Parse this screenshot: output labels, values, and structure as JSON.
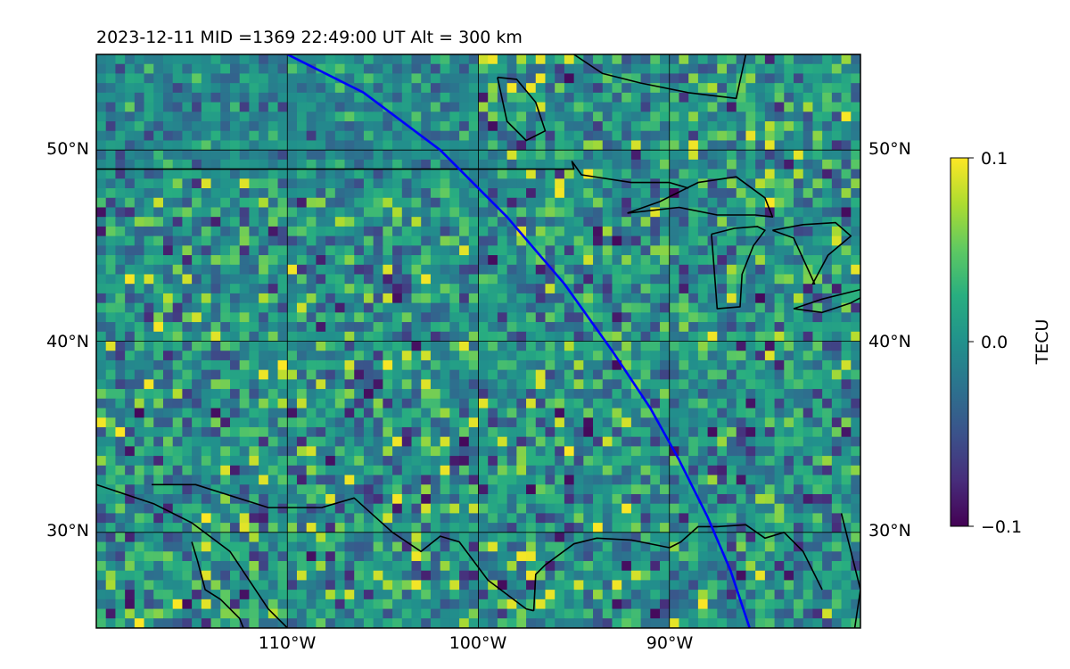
{
  "chart_data": {
    "type": "heatmap",
    "title": "2023-12-11  MID =1369    22:49:00  UT  Alt = 300 km",
    "projection": "map",
    "lon_range": [
      -120,
      -80
    ],
    "lat_range": [
      25,
      55
    ],
    "grid": true,
    "x_ticks": [
      {
        "value": -110,
        "label": "110°W"
      },
      {
        "value": -100,
        "label": "100°W"
      },
      {
        "value": -90,
        "label": "90°W"
      }
    ],
    "y_ticks": [
      {
        "value": 30,
        "label": "30°N"
      },
      {
        "value": 40,
        "label": "40°N"
      },
      {
        "value": 50,
        "label": "50°N"
      }
    ],
    "colorbar": {
      "label": "TECU",
      "colormap": "viridis",
      "vmin": -0.1,
      "vmax": 0.1,
      "ticks": [
        {
          "value": 0.1,
          "label": "0.1"
        },
        {
          "value": 0.0,
          "label": "0.0"
        },
        {
          "value": -0.1,
          "label": "−0.1"
        }
      ]
    },
    "colors": {
      "track": "#0000ff",
      "coastline": "#000000",
      "viridis_low": "#440154",
      "viridis_mid": "#21918c",
      "viridis_high": "#fde725"
    },
    "satellite_track": {
      "lon": [
        -110.0,
        -106.0,
        -102.0,
        -98.5,
        -95.5,
        -93.0,
        -91.0,
        -89.5,
        -88.0,
        -86.8,
        -85.8
      ],
      "lat": [
        55.0,
        53.0,
        50.0,
        46.5,
        43.0,
        39.5,
        36.5,
        33.8,
        30.8,
        28.0,
        25.0
      ]
    },
    "coastlines": [
      {
        "name": "us-canada-border",
        "lon": [
          -120,
          -115,
          -110,
          -105,
          -100,
          -95,
          -95.1,
          -94.6,
          -92,
          -90,
          -89
        ],
        "lat": [
          49,
          49,
          49,
          49,
          49,
          49,
          49.4,
          48.7,
          48.3,
          48.3,
          48.0
        ]
      },
      {
        "name": "lake-superior",
        "lon": [
          -92.2,
          -90.5,
          -88.5,
          -86.5,
          -85.0,
          -84.6,
          -85.5,
          -87.5,
          -89.5,
          -92.2
        ],
        "lat": [
          46.7,
          47.3,
          48.3,
          48.6,
          47.5,
          46.5,
          46.6,
          46.6,
          47.0,
          46.7
        ]
      },
      {
        "name": "lake-michigan",
        "lon": [
          -87.8,
          -87.6,
          -87.5,
          -86.3,
          -86.2,
          -85.6,
          -85.0,
          -85.4,
          -86.6,
          -87.8
        ],
        "lat": [
          45.6,
          43.0,
          41.7,
          41.8,
          43.5,
          45.0,
          45.8,
          46.0,
          45.9,
          45.6
        ]
      },
      {
        "name": "lake-huron",
        "lon": [
          -84.6,
          -83.5,
          -82.4,
          -82.5,
          -81.7,
          -80.5,
          -81.3,
          -83.0,
          -84.6
        ],
        "lat": [
          45.8,
          45.4,
          43.0,
          43.0,
          44.5,
          45.5,
          46.2,
          46.1,
          45.8
        ]
      },
      {
        "name": "lake-erie",
        "lon": [
          -83.5,
          -82.0,
          -80.5,
          -79.0,
          -80.0,
          -82.0,
          -83.5
        ],
        "lat": [
          41.7,
          41.5,
          42.0,
          42.8,
          42.7,
          42.2,
          41.7
        ]
      },
      {
        "name": "hudson-bay-coast",
        "lon": [
          -95.0,
          -93.5,
          -91.5,
          -89.0,
          -86.5,
          -86.0,
          -84.0,
          -80.0
        ],
        "lat": [
          55.0,
          54.0,
          53.5,
          53.0,
          52.7,
          55.0,
          55.0,
          55.0
        ]
      },
      {
        "name": "lake-winnipeg",
        "lon": [
          -99.0,
          -98.0,
          -97.0,
          -96.5,
          -97.5,
          -98.5,
          -99.0
        ],
        "lat": [
          53.8,
          53.7,
          52.5,
          51.0,
          50.5,
          51.5,
          53.8
        ]
      },
      {
        "name": "mexico-pacific-coast",
        "lon": [
          -120,
          -117,
          -115,
          -113,
          -112,
          -111,
          -110
        ],
        "lat": [
          32.5,
          31.5,
          30.5,
          29.0,
          27.5,
          26.0,
          25.0
        ]
      },
      {
        "name": "baja-california",
        "lon": [
          -115.0,
          -114.7,
          -114.3,
          -113.5,
          -112.5,
          -112.3
        ],
        "lat": [
          29.5,
          28.5,
          27.0,
          26.5,
          25.5,
          25.0
        ]
      },
      {
        "name": "us-mexico-border",
        "lon": [
          -117.1,
          -114.8,
          -111.0,
          -108.2,
          -106.5,
          -104.5,
          -103.0,
          -102.0,
          -101.0,
          -99.5,
          -97.5,
          -97.1
        ],
        "lat": [
          32.5,
          32.5,
          31.3,
          31.3,
          31.8,
          30.0,
          29.0,
          29.8,
          29.5,
          27.5,
          26.0,
          25.9
        ]
      },
      {
        "name": "gulf-coast",
        "lon": [
          -97.1,
          -97.0,
          -96.5,
          -95.0,
          -93.8,
          -92.0,
          -90.0,
          -89.4,
          -88.5,
          -87.5,
          -86.0,
          -85.0,
          -84.0,
          -83.0,
          -82.0
        ],
        "lat": [
          25.9,
          27.8,
          28.3,
          29.4,
          29.7,
          29.6,
          29.2,
          29.5,
          30.3,
          30.3,
          30.4,
          29.7,
          30.0,
          29.0,
          27.0
        ]
      },
      {
        "name": "atlantic-coast",
        "lon": [
          -81.0,
          -80.0,
          -80.3
        ],
        "lat": [
          31.0,
          27.0,
          25.0
        ]
      }
    ]
  }
}
